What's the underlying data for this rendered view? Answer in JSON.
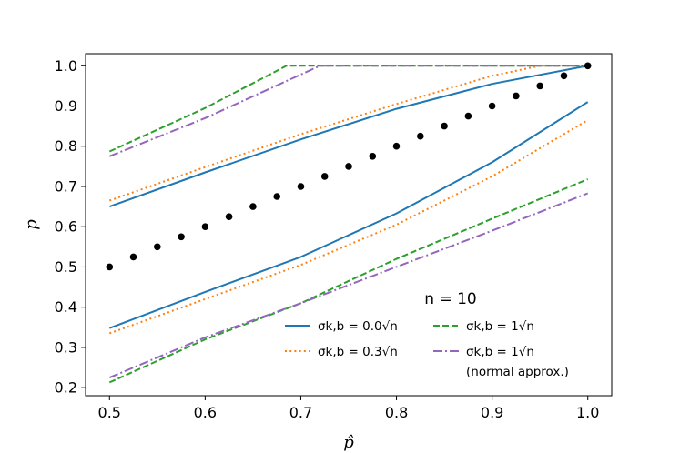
{
  "chart_data": {
    "type": "line",
    "title": "",
    "xlabel": "p̂",
    "ylabel": "p",
    "xlim": [
      0.475,
      1.025
    ],
    "ylim": [
      0.18,
      1.03
    ],
    "xticks": [
      "0.5",
      "0.6",
      "0.7",
      "0.8",
      "0.9",
      "1.0"
    ],
    "yticks": [
      "0.2",
      "0.3",
      "0.4",
      "0.5",
      "0.6",
      "0.7",
      "0.8",
      "0.9",
      "1.0"
    ],
    "grid": false,
    "legend": {
      "title": "n = 10",
      "placement": "lower-right"
    },
    "colors": {
      "blue": "#1f77b4",
      "orange": "#ff7f0e",
      "green": "#2ca02c",
      "purple": "#9467bd",
      "black": "#000000"
    },
    "points": {
      "x": [
        0.5,
        0.525,
        0.55,
        0.575,
        0.6,
        0.625,
        0.65,
        0.675,
        0.7,
        0.725,
        0.75,
        0.775,
        0.8,
        0.825,
        0.85,
        0.875,
        0.9,
        0.925,
        0.95,
        0.975,
        1.0
      ],
      "y": [
        0.5,
        0.525,
        0.55,
        0.575,
        0.6,
        0.625,
        0.65,
        0.675,
        0.7,
        0.725,
        0.75,
        0.775,
        0.8,
        0.825,
        0.85,
        0.875,
        0.9,
        0.925,
        0.95,
        0.975,
        1.0
      ]
    },
    "series": [
      {
        "name": "σk,b = 0.0√n",
        "color": "#1f77b4",
        "dash": "solid",
        "upper": {
          "x": [
            0.5,
            0.6,
            0.7,
            0.8,
            0.9,
            1.0
          ],
          "y": [
            0.65,
            0.735,
            0.817,
            0.893,
            0.955,
            1.0
          ]
        },
        "lower": {
          "x": [
            0.5,
            0.6,
            0.7,
            0.8,
            0.9,
            1.0
          ],
          "y": [
            0.348,
            0.438,
            0.525,
            0.633,
            0.76,
            0.91
          ]
        }
      },
      {
        "name": "σk,b = 0.3√n",
        "color": "#ff7f0e",
        "dash": "dotted",
        "upper": {
          "x": [
            0.5,
            0.6,
            0.7,
            0.8,
            0.9,
            0.95,
            1.0
          ],
          "y": [
            0.665,
            0.748,
            0.83,
            0.905,
            0.975,
            1.0,
            1.0
          ]
        },
        "lower": {
          "x": [
            0.5,
            0.6,
            0.7,
            0.8,
            0.9,
            1.0
          ],
          "y": [
            0.335,
            0.42,
            0.505,
            0.605,
            0.725,
            0.865
          ]
        }
      },
      {
        "name": "σk,b = 1√n",
        "color": "#2ca02c",
        "dash": "dashed",
        "upper": {
          "x": [
            0.5,
            0.6,
            0.685,
            0.8,
            0.9,
            1.0
          ],
          "y": [
            0.787,
            0.895,
            1.0,
            1.0,
            1.0,
            1.0
          ]
        },
        "lower": {
          "x": [
            0.5,
            0.6,
            0.7,
            0.8,
            0.9,
            1.0
          ],
          "y": [
            0.213,
            0.32,
            0.41,
            0.52,
            0.62,
            0.718
          ]
        }
      },
      {
        "name": "σk,b = 1√n",
        "name_note": "(normal approx.)",
        "color": "#9467bd",
        "dash": "dashdot",
        "upper": {
          "x": [
            0.5,
            0.6,
            0.72,
            0.8,
            0.9,
            1.0
          ],
          "y": [
            0.775,
            0.87,
            1.0,
            1.0,
            1.0,
            1.0
          ]
        },
        "lower": {
          "x": [
            0.5,
            0.6,
            0.7,
            0.8,
            0.9,
            1.0
          ],
          "y": [
            0.225,
            0.325,
            0.41,
            0.5,
            0.59,
            0.683
          ]
        }
      }
    ]
  }
}
